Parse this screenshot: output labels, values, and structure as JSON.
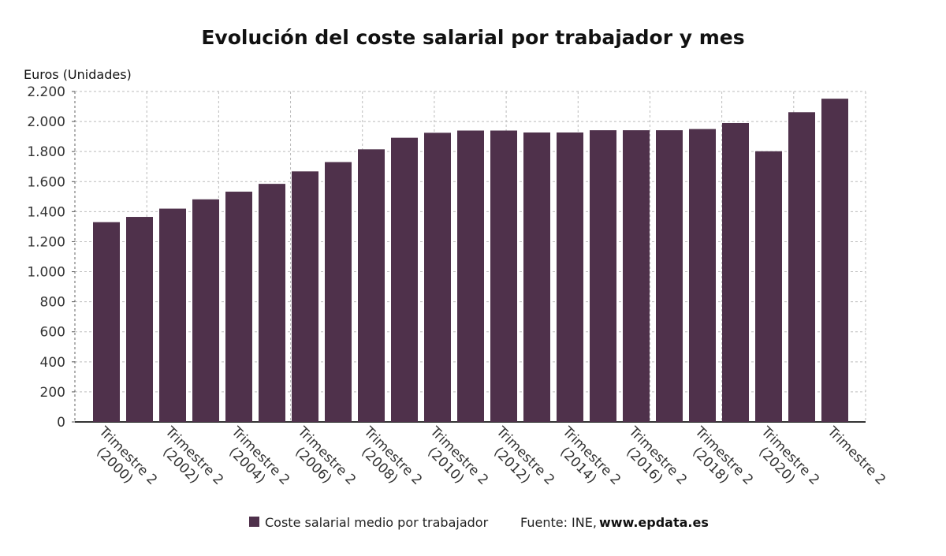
{
  "chart_data": {
    "type": "bar",
    "title": "Evolución del coste salarial por trabajador y mes",
    "y_label": "Euros (Unidades)",
    "categories": [
      "Trimestre 2 (2000)",
      null,
      "Trimestre 2 (2002)",
      null,
      "Trimestre 2 (2004)",
      null,
      "Trimestre 2 (2006)",
      null,
      "Trimestre 2 (2008)",
      null,
      "Trimestre 2 (2010)",
      null,
      "Trimestre 2 (2012)",
      null,
      "Trimestre 2 (2014)",
      null,
      "Trimestre 2 (2016)",
      null,
      "Trimestre 2 (2018)",
      null,
      "Trimestre 2 (2020)",
      null,
      "Trimestre 2"
    ],
    "series": [
      {
        "name": "Coste salarial medio por trabajador",
        "color": "#4f314b",
        "values": [
          1330,
          1365,
          1420,
          1482,
          1533,
          1585,
          1668,
          1730,
          1815,
          1892,
          1925,
          1940,
          1940,
          1927,
          1927,
          1942,
          1942,
          1942,
          1950,
          1990,
          1802,
          2062,
          2152
        ]
      }
    ],
    "ylim": [
      0,
      2200
    ],
    "yticks": [
      0,
      200,
      400,
      600,
      800,
      {
        "value": 1000,
        "label": "1.000"
      },
      {
        "value": 1200,
        "label": "1.200"
      },
      {
        "value": 1400,
        "label": "1.400"
      },
      {
        "value": 1600,
        "label": "1.600"
      },
      {
        "value": 1800,
        "label": "1.800"
      },
      {
        "value": 2000,
        "label": "2.000"
      },
      {
        "value": 2200,
        "label": "2.200"
      }
    ],
    "grid": true,
    "legend": "bottom",
    "source": "Fuente: INE,",
    "source_site": "www.epdata.es"
  }
}
